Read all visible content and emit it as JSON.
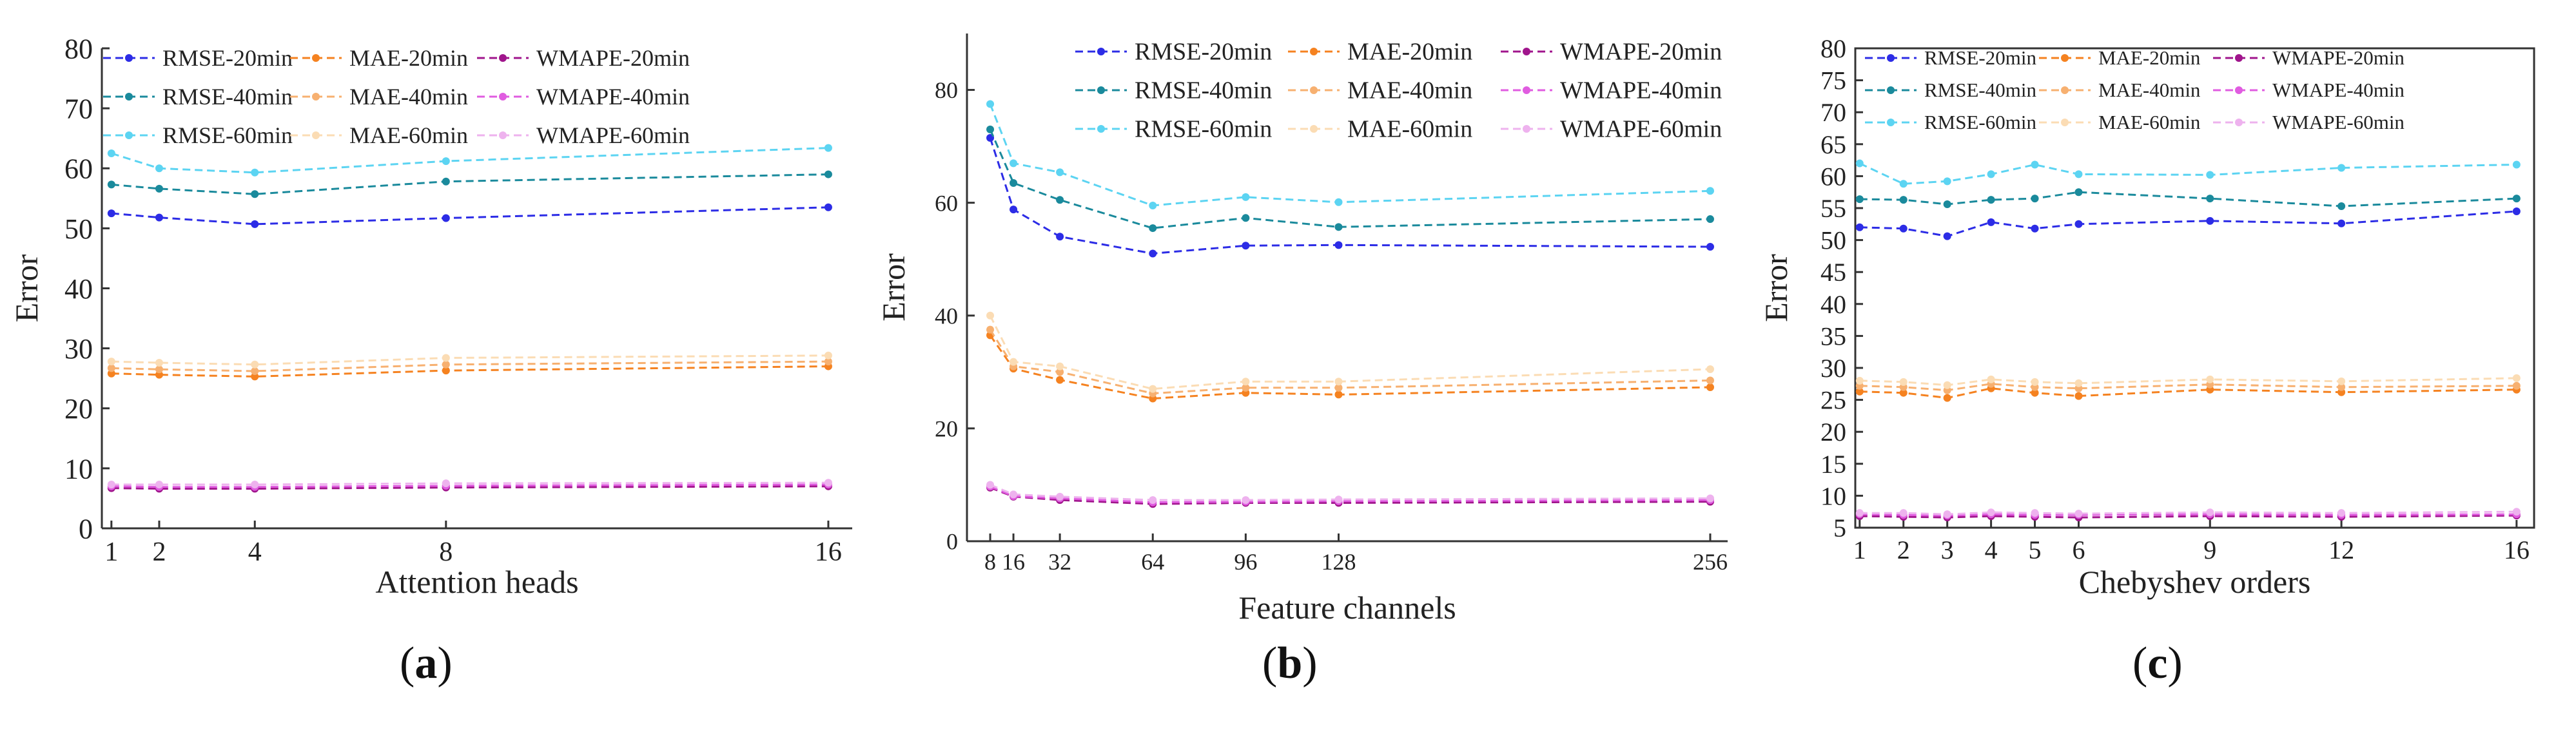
{
  "colors": {
    "RMSE-20min": "#2c2ce6",
    "RMSE-40min": "#1a8a9c",
    "RMSE-60min": "#5cd4f2",
    "MAE-20min": "#f58220",
    "MAE-40min": "#f7b070",
    "MAE-60min": "#fbdcb4",
    "WMAPE-20min": "#a0158c",
    "WMAPE-40min": "#e05ce0",
    "WMAPE-60min": "#eeb2ee"
  },
  "chart_data": [
    {
      "type": "line",
      "panel_label": "a",
      "xlabel": "Attention heads",
      "ylabel": "Error",
      "x": [
        1,
        2,
        4,
        8,
        16
      ],
      "xlim": [
        0.8,
        16.5
      ],
      "ylim": [
        0,
        80
      ],
      "yticks": [
        0,
        10,
        20,
        30,
        40,
        50,
        60,
        70,
        80
      ],
      "xticks": [
        1,
        2,
        4,
        8,
        16
      ],
      "legend": "top",
      "series": [
        {
          "name": "RMSE-20min",
          "values": [
            52.5,
            51.8,
            50.7,
            51.7,
            53.5
          ]
        },
        {
          "name": "MAE-20min",
          "values": [
            25.8,
            25.6,
            25.3,
            26.3,
            27.0
          ]
        },
        {
          "name": "WMAPE-20min",
          "values": [
            6.7,
            6.6,
            6.6,
            6.8,
            7.0
          ]
        },
        {
          "name": "RMSE-40min",
          "values": [
            57.3,
            56.6,
            55.7,
            57.8,
            59.0
          ]
        },
        {
          "name": "MAE-40min",
          "values": [
            26.7,
            26.5,
            26.2,
            27.3,
            27.8
          ]
        },
        {
          "name": "WMAPE-40min",
          "values": [
            7.0,
            6.9,
            6.9,
            7.1,
            7.3
          ]
        },
        {
          "name": "RMSE-60min",
          "values": [
            62.5,
            60.0,
            59.3,
            61.2,
            63.4
          ]
        },
        {
          "name": "MAE-60min",
          "values": [
            27.8,
            27.6,
            27.3,
            28.4,
            28.8
          ]
        },
        {
          "name": "WMAPE-60min",
          "values": [
            7.3,
            7.3,
            7.3,
            7.5,
            7.6
          ]
        }
      ]
    },
    {
      "type": "line",
      "panel_label": "b",
      "xlabel": "Feature channels",
      "ylabel": "Error",
      "x": [
        8,
        16,
        32,
        64,
        96,
        128,
        256
      ],
      "xlim": [
        0,
        262
      ],
      "ylim": [
        0,
        90
      ],
      "yticks": [
        0,
        20,
        40,
        60,
        80
      ],
      "xticks": [
        8,
        16,
        32,
        64,
        96,
        128,
        256
      ],
      "legend": "top",
      "series": [
        {
          "name": "RMSE-20min",
          "values": [
            71.5,
            58.8,
            54.0,
            51.0,
            52.4,
            52.5,
            52.2
          ]
        },
        {
          "name": "MAE-20min",
          "values": [
            36.5,
            30.6,
            28.6,
            25.3,
            26.3,
            26.0,
            27.3
          ]
        },
        {
          "name": "WMAPE-20min",
          "values": [
            9.5,
            7.9,
            7.3,
            6.6,
            6.8,
            6.8,
            7.0
          ]
        },
        {
          "name": "RMSE-40min",
          "values": [
            73.0,
            63.5,
            60.5,
            55.5,
            57.3,
            55.7,
            57.1
          ]
        },
        {
          "name": "MAE-40min",
          "values": [
            37.5,
            31.0,
            30.0,
            26.2,
            27.2,
            27.2,
            28.5
          ]
        },
        {
          "name": "WMAPE-40min",
          "values": [
            9.7,
            8.0,
            7.6,
            6.9,
            7.0,
            7.1,
            7.3
          ]
        },
        {
          "name": "RMSE-60min",
          "values": [
            77.5,
            67.0,
            65.4,
            59.5,
            61.0,
            60.1,
            62.1
          ]
        },
        {
          "name": "MAE-60min",
          "values": [
            40.0,
            31.8,
            31.0,
            27.0,
            28.3,
            28.3,
            30.5
          ]
        },
        {
          "name": "WMAPE-60min",
          "values": [
            10.0,
            8.3,
            7.9,
            7.3,
            7.3,
            7.4,
            7.6
          ]
        }
      ]
    },
    {
      "type": "line",
      "panel_label": "c",
      "xlabel": "Chebyshev orders",
      "ylabel": "Error",
      "x": [
        1,
        2,
        3,
        4,
        5,
        6,
        9,
        12,
        16
      ],
      "xlim": [
        0.9,
        16.4
      ],
      "ylim": [
        5,
        80
      ],
      "yticks": [
        5,
        10,
        15,
        20,
        25,
        30,
        35,
        40,
        45,
        50,
        55,
        60,
        65,
        70,
        75,
        80
      ],
      "xticks": [
        1,
        2,
        3,
        4,
        5,
        6,
        9,
        12,
        16
      ],
      "legend": "top",
      "series": [
        {
          "name": "RMSE-20min",
          "values": [
            52.0,
            51.8,
            50.6,
            52.8,
            51.8,
            52.5,
            53.0,
            52.6,
            54.5
          ]
        },
        {
          "name": "MAE-20min",
          "values": [
            26.3,
            26.1,
            25.3,
            26.8,
            26.1,
            25.6,
            26.6,
            26.2,
            26.6
          ]
        },
        {
          "name": "WMAPE-20min",
          "values": [
            6.8,
            6.7,
            6.6,
            6.8,
            6.7,
            6.6,
            6.8,
            6.7,
            6.9
          ]
        },
        {
          "name": "RMSE-40min",
          "values": [
            56.4,
            56.3,
            55.6,
            56.3,
            56.5,
            57.5,
            56.5,
            55.3,
            56.5
          ]
        },
        {
          "name": "MAE-40min",
          "values": [
            27.2,
            27.0,
            26.5,
            27.5,
            27.0,
            26.8,
            27.4,
            27.0,
            27.2
          ]
        },
        {
          "name": "WMAPE-40min",
          "values": [
            7.1,
            7.0,
            6.9,
            7.1,
            7.0,
            7.0,
            7.1,
            7.0,
            7.1
          ]
        },
        {
          "name": "RMSE-60min",
          "values": [
            62.0,
            58.8,
            59.2,
            60.3,
            61.8,
            60.3,
            60.2,
            61.3,
            61.8
          ]
        },
        {
          "name": "MAE-60min",
          "values": [
            28.0,
            27.8,
            27.3,
            28.2,
            27.8,
            27.6,
            28.2,
            27.9,
            28.4
          ]
        },
        {
          "name": "WMAPE-60min",
          "values": [
            7.3,
            7.3,
            7.1,
            7.4,
            7.3,
            7.2,
            7.4,
            7.3,
            7.5
          ]
        }
      ]
    }
  ]
}
